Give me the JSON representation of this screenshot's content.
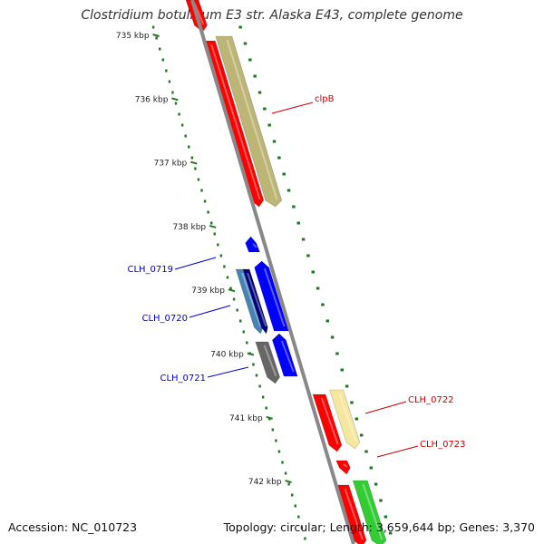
{
  "title": "Clostridium botulinum E3 str. Alaska E43, complete genome",
  "footer": {
    "accession": "Accession: NC_010723",
    "summary": "Topology: circular; Length: 3,659,644 bp; Genes: 3,370"
  },
  "ruler_ticks": [
    {
      "label": "735 kbp",
      "kbp": 735
    },
    {
      "label": "736 kbp",
      "kbp": 736
    },
    {
      "label": "737 kbp",
      "kbp": 737
    },
    {
      "label": "738 kbp",
      "kbp": 738
    },
    {
      "label": "739 kbp",
      "kbp": 739
    },
    {
      "label": "740 kbp",
      "kbp": 740
    },
    {
      "label": "741 kbp",
      "kbp": 741
    },
    {
      "label": "742 kbp",
      "kbp": 742
    }
  ],
  "gene_labels": [
    {
      "text": "clpB",
      "color": "#cc0000"
    },
    {
      "text": "CLH_0719",
      "color": "#0000cc"
    },
    {
      "text": "CLH_0720",
      "color": "#0000cc"
    },
    {
      "text": "CLH_0721",
      "color": "#0000cc"
    },
    {
      "text": "CLH_0722",
      "color": "#cc0000"
    },
    {
      "text": "CLH_0723",
      "color": "#cc0000"
    }
  ],
  "colors": {
    "forward_red": "#ff0000",
    "khaki": "#bdb576",
    "pale_yellow": "#f5e6a0",
    "blue": "#0000ff",
    "steel_blue": "#4682b4",
    "navy": "#000080",
    "gray": "#666666",
    "green": "#33cc33",
    "backbone": "#888888",
    "ruler": "#227722"
  }
}
